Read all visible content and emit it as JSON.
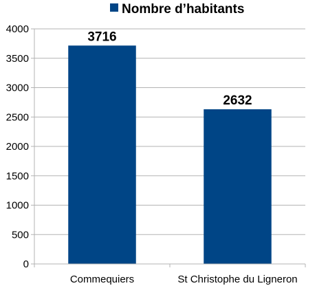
{
  "chart_data": {
    "type": "bar",
    "categories": [
      "Commequiers",
      "St Christophe du Ligneron"
    ],
    "series": [
      {
        "name": "Nombre d’habitants",
        "values": [
          3716,
          2632
        ]
      }
    ],
    "ylim": [
      0,
      4000
    ],
    "yticks": [
      0,
      500,
      1000,
      1500,
      2000,
      2500,
      3000,
      3500,
      4000
    ],
    "grid": true,
    "legend": "top",
    "colors": {
      "bar": "#004586",
      "grid": "#b3b3b3",
      "axis": "#b3b3b3"
    }
  }
}
